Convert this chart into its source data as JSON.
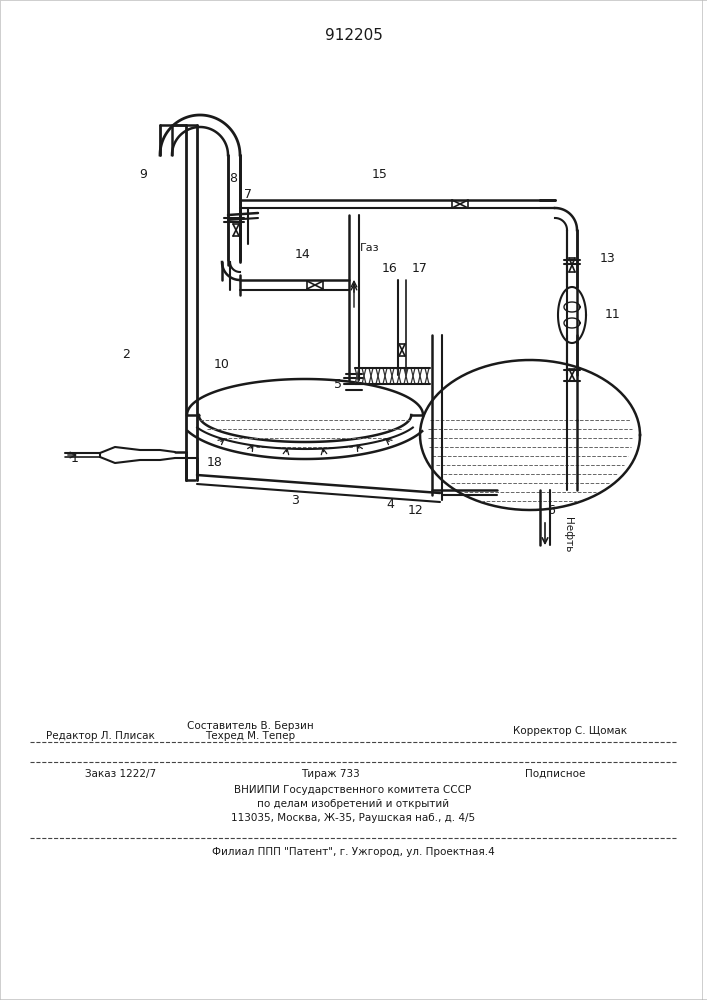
{
  "patent_number": "912205",
  "bg": "#ffffff",
  "lc": "#1a1a1a",
  "footer_editor": "Редактор Л. Плисак",
  "footer_composer": "Составитель В. Берзин",
  "footer_techred": "Техред М. Тепер",
  "footer_corrector": "Корректор С. Щомак",
  "footer_order": "Заказ 1222/7",
  "footer_tirazh": "Тираж 733",
  "footer_podp": "Подписное",
  "footer_vniip1": "ВНИИПИ Государственного комитета СССР",
  "footer_vniip2": "по делам изобретений и открытий",
  "footer_addr": "113035, Москва, Ж-35, Раушская наб., д. 4/5",
  "footer_filial": "Филиал ППП \"Патент\", г. Ужгород, ул. Проектная.4",
  "label_gas": "Газ",
  "label_oil": "Нефть"
}
